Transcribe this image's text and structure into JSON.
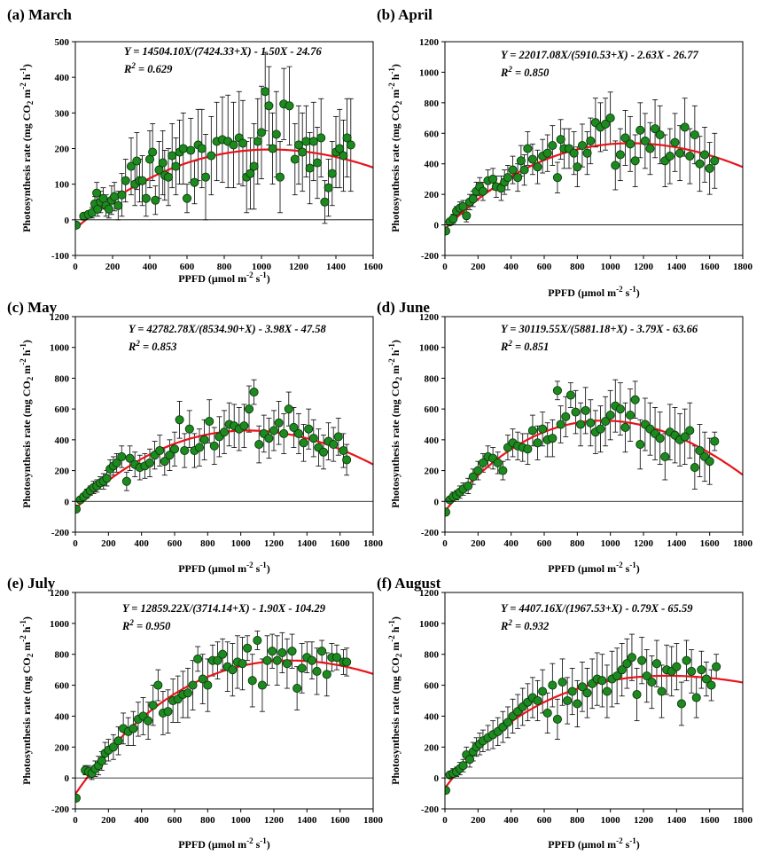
{
  "chart_data": [
    {
      "type": "scatter",
      "panel": "(a) March",
      "title": "(a) March",
      "equation": "Y = 14504.10X/(7424.33+X) - 1.50X - 24.76",
      "r2": "R² = 0.629",
      "r2_label": "R",
      "r2_sup": "2",
      "r2_value": " = 0.629",
      "xlabel": "PPFD (µmol m⁻² s⁻¹)",
      "ylabel": "Photosynthesis rate (mg CO₂ m⁻² h⁻¹)",
      "xlim": [
        0,
        1600
      ],
      "ylim": [
        -100,
        500
      ],
      "xticks": [
        0,
        200,
        400,
        600,
        800,
        1000,
        1200,
        1400,
        1600
      ],
      "yticks": [
        -100,
        0,
        100,
        200,
        300,
        400,
        500
      ],
      "fit": {
        "a": 14504.1,
        "b": 7424.33,
        "c": 1.5,
        "d": 24.76
      },
      "x": [
        5,
        45,
        70,
        90,
        105,
        115,
        120,
        135,
        150,
        165,
        180,
        195,
        210,
        230,
        250,
        270,
        300,
        320,
        330,
        345,
        360,
        380,
        400,
        415,
        430,
        450,
        470,
        480,
        500,
        520,
        540,
        560,
        580,
        600,
        620,
        640,
        660,
        680,
        700,
        730,
        760,
        790,
        820,
        850,
        880,
        900,
        920,
        940,
        960,
        980,
        1000,
        1020,
        1040,
        1060,
        1080,
        1100,
        1120,
        1150,
        1180,
        1200,
        1220,
        1240,
        1260,
        1280,
        1300,
        1320,
        1340,
        1360,
        1380,
        1400,
        1420,
        1440,
        1460,
        1480
      ],
      "y": [
        -15,
        10,
        15,
        20,
        45,
        75,
        30,
        50,
        60,
        40,
        30,
        55,
        65,
        40,
        70,
        110,
        150,
        100,
        165,
        110,
        110,
        60,
        170,
        190,
        55,
        140,
        160,
        125,
        120,
        180,
        150,
        190,
        200,
        60,
        195,
        105,
        210,
        200,
        120,
        180,
        220,
        225,
        220,
        210,
        230,
        215,
        120,
        130,
        150,
        220,
        245,
        360,
        320,
        200,
        240,
        120,
        325,
        320,
        170,
        210,
        190,
        220,
        145,
        220,
        160,
        230,
        50,
        90,
        130,
        190,
        200,
        180,
        230,
        210
      ],
      "err": [
        5,
        10,
        10,
        15,
        20,
        30,
        20,
        30,
        30,
        30,
        25,
        40,
        40,
        40,
        60,
        60,
        80,
        60,
        80,
        60,
        70,
        50,
        80,
        80,
        40,
        80,
        90,
        70,
        80,
        90,
        80,
        90,
        100,
        40,
        90,
        60,
        100,
        110,
        120,
        110,
        110,
        120,
        130,
        120,
        130,
        120,
        100,
        100,
        120,
        120,
        130,
        110,
        110,
        100,
        120,
        100,
        100,
        110,
        100,
        110,
        110,
        100,
        100,
        110,
        100,
        110,
        60,
        80,
        90,
        100,
        110,
        100,
        110,
        130
      ]
    },
    {
      "type": "scatter",
      "panel": "(b) April",
      "title": "(b) April",
      "equation": "Y = 22017.08X/(5910.53+X) - 2.63X - 26.77",
      "r2": "R² = 0.850",
      "r2_label": "R",
      "r2_sup": "2",
      "r2_value": " = 0.850",
      "xlabel": "PPFD (µmol m⁻² s⁻¹)",
      "ylabel": "Photosynthesis rate (mg CO₂ m⁻² h⁻¹)",
      "xlim": [
        0,
        1800
      ],
      "ylim": [
        -200,
        1200
      ],
      "xticks": [
        0,
        200,
        400,
        600,
        800,
        1000,
        1200,
        1400,
        1600,
        1800
      ],
      "yticks": [
        -200,
        0,
        200,
        400,
        600,
        800,
        1000,
        1200
      ],
      "fit": {
        "a": 22017.08,
        "b": 5910.53,
        "c": 2.63,
        "d": 26.77
      },
      "x": [
        5,
        30,
        50,
        70,
        90,
        110,
        130,
        150,
        170,
        190,
        210,
        230,
        260,
        290,
        310,
        340,
        360,
        380,
        410,
        440,
        460,
        480,
        500,
        530,
        560,
        590,
        620,
        650,
        680,
        700,
        720,
        750,
        780,
        800,
        830,
        860,
        880,
        910,
        940,
        970,
        1000,
        1030,
        1060,
        1090,
        1120,
        1150,
        1180,
        1210,
        1240,
        1270,
        1300,
        1330,
        1360,
        1390,
        1420,
        1450,
        1480,
        1510,
        1540,
        1570,
        1600,
        1630
      ],
      "y": [
        -40,
        20,
        40,
        90,
        110,
        120,
        60,
        150,
        170,
        220,
        250,
        220,
        290,
        300,
        250,
        240,
        280,
        310,
        360,
        310,
        420,
        360,
        500,
        430,
        380,
        450,
        470,
        520,
        310,
        560,
        500,
        500,
        470,
        380,
        520,
        470,
        550,
        670,
        640,
        660,
        700,
        390,
        460,
        570,
        530,
        420,
        620,
        550,
        500,
        630,
        590,
        420,
        450,
        540,
        470,
        640,
        450,
        590,
        400,
        460,
        370,
        420
      ],
      "err": [
        10,
        20,
        30,
        30,
        40,
        40,
        40,
        50,
        50,
        60,
        60,
        60,
        70,
        70,
        70,
        80,
        80,
        80,
        90,
        90,
        100,
        100,
        110,
        100,
        110,
        110,
        120,
        130,
        100,
        130,
        130,
        130,
        140,
        130,
        140,
        140,
        150,
        160,
        160,
        170,
        170,
        160,
        170,
        180,
        180,
        170,
        180,
        180,
        170,
        190,
        190,
        170,
        180,
        190,
        180,
        190,
        180,
        190,
        180,
        180,
        170,
        180
      ]
    },
    {
      "type": "scatter",
      "panel": "(c) May",
      "title": "(c) May",
      "equation": "Y = 42782.78X/(8534.90+X) - 3.98X - 47.58",
      "r2": "R² = 0.853",
      "r2_label": "R",
      "r2_sup": "2",
      "r2_value": " = 0.853",
      "xlabel": "PPFD (µmol m⁻² s⁻¹)",
      "ylabel": "Photosynthesis rate (mg CO₂ m⁻² h⁻¹)",
      "xlim": [
        0,
        1800
      ],
      "ylim": [
        -200,
        1200
      ],
      "xticks": [
        0,
        200,
        400,
        600,
        800,
        1000,
        1200,
        1400,
        1600,
        1800
      ],
      "yticks": [
        -200,
        0,
        200,
        400,
        600,
        800,
        1000,
        1200
      ],
      "fit": {
        "a": 42782.78,
        "b": 8534.9,
        "c": 3.98,
        "d": 47.58
      },
      "x": [
        5,
        30,
        50,
        70,
        90,
        110,
        130,
        150,
        170,
        190,
        210,
        230,
        250,
        280,
        310,
        330,
        360,
        390,
        420,
        450,
        480,
        510,
        540,
        570,
        600,
        630,
        660,
        690,
        720,
        750,
        780,
        810,
        840,
        870,
        900,
        930,
        960,
        990,
        1020,
        1050,
        1080,
        1110,
        1140,
        1170,
        1200,
        1230,
        1260,
        1290,
        1320,
        1350,
        1380,
        1410,
        1440,
        1470,
        1500,
        1530,
        1560,
        1590,
        1620,
        1640
      ],
      "y": [
        -50,
        10,
        30,
        50,
        70,
        90,
        100,
        120,
        130,
        150,
        210,
        230,
        250,
        290,
        130,
        280,
        240,
        220,
        230,
        250,
        300,
        330,
        260,
        300,
        340,
        530,
        330,
        470,
        330,
        350,
        400,
        520,
        360,
        420,
        450,
        500,
        490,
        470,
        490,
        600,
        710,
        370,
        440,
        410,
        460,
        510,
        440,
        600,
        480,
        440,
        380,
        470,
        410,
        350,
        320,
        390,
        370,
        420,
        330,
        270
      ],
      "err": [
        10,
        20,
        20,
        30,
        30,
        40,
        40,
        40,
        50,
        50,
        60,
        60,
        60,
        70,
        60,
        80,
        80,
        80,
        80,
        90,
        90,
        100,
        90,
        100,
        110,
        120,
        110,
        120,
        110,
        120,
        130,
        140,
        120,
        130,
        140,
        140,
        140,
        140,
        140,
        150,
        80,
        120,
        120,
        130,
        130,
        140,
        130,
        110,
        130,
        130,
        120,
        130,
        120,
        120,
        110,
        120,
        110,
        120,
        110,
        100
      ]
    },
    {
      "type": "scatter",
      "panel": "(d) June",
      "title": "(d) June",
      "equation": "Y = 30119.55X/(5881.18+X) - 3.79X - 63.66",
      "r2": "R² = 0.851",
      "r2_label": "R",
      "r2_sup": "2",
      "r2_value": " = 0.851",
      "xlabel": "PPFD (µmol m⁻² s⁻¹)",
      "ylabel": "Photosynthesis rate (mg CO₂ m⁻² h⁻¹)",
      "xlim": [
        0,
        1800
      ],
      "ylim": [
        -200,
        1200
      ],
      "xticks": [
        0,
        200,
        400,
        600,
        800,
        1000,
        1200,
        1400,
        1600,
        1800
      ],
      "yticks": [
        -200,
        0,
        200,
        400,
        600,
        800,
        1000,
        1200
      ],
      "fit": {
        "a": 30119.55,
        "b": 5881.18,
        "c": 3.79,
        "d": 63.66
      },
      "x": [
        5,
        30,
        50,
        70,
        90,
        110,
        140,
        170,
        200,
        230,
        260,
        290,
        320,
        350,
        380,
        410,
        440,
        470,
        500,
        530,
        560,
        590,
        620,
        650,
        680,
        700,
        730,
        760,
        790,
        820,
        850,
        880,
        910,
        940,
        970,
        1000,
        1030,
        1060,
        1090,
        1120,
        1150,
        1180,
        1210,
        1240,
        1270,
        1300,
        1330,
        1360,
        1390,
        1420,
        1450,
        1480,
        1510,
        1540,
        1570,
        1600,
        1630
      ],
      "y": [
        -70,
        10,
        30,
        40,
        60,
        80,
        100,
        160,
        200,
        250,
        290,
        280,
        250,
        200,
        350,
        380,
        360,
        350,
        340,
        460,
        380,
        470,
        400,
        410,
        720,
        500,
        550,
        690,
        580,
        500,
        590,
        510,
        450,
        470,
        520,
        560,
        620,
        600,
        480,
        560,
        660,
        370,
        500,
        470,
        440,
        410,
        290,
        450,
        430,
        400,
        420,
        460,
        220,
        330,
        290,
        260,
        390
      ],
      "err": [
        10,
        20,
        30,
        30,
        40,
        40,
        50,
        50,
        60,
        60,
        70,
        70,
        70,
        60,
        80,
        90,
        90,
        90,
        100,
        100,
        110,
        110,
        110,
        120,
        60,
        120,
        130,
        80,
        140,
        140,
        150,
        150,
        140,
        150,
        160,
        160,
        170,
        170,
        160,
        170,
        120,
        160,
        170,
        170,
        170,
        170,
        150,
        180,
        180,
        170,
        180,
        180,
        140,
        170,
        160,
        150,
        60
      ]
    },
    {
      "type": "scatter",
      "panel": "(e) July",
      "title": "(e) July",
      "equation": "Y = 12859.22X/(3714.14+X) - 1.90X - 104.29",
      "r2": "R² = 0.950",
      "r2_label": "R",
      "r2_sup": "2",
      "r2_value": " = 0.950",
      "xlabel": "PPFD (µmol m⁻² s⁻¹)",
      "ylabel": "Photosynthesis rate (mg CO₂ m⁻² h⁻¹)",
      "xlim": [
        0,
        1800
      ],
      "ylim": [
        -200,
        1200
      ],
      "xticks": [
        0,
        200,
        400,
        600,
        800,
        1000,
        1200,
        1400,
        1600,
        1800
      ],
      "yticks": [
        -200,
        0,
        200,
        400,
        600,
        800,
        1000,
        1200
      ],
      "fit": {
        "a": 12859.22,
        "b": 3714.14,
        "c": 1.9,
        "d": 104.29
      },
      "x": [
        5,
        60,
        80,
        100,
        120,
        140,
        160,
        180,
        200,
        230,
        260,
        290,
        320,
        350,
        380,
        410,
        440,
        470,
        500,
        530,
        560,
        590,
        620,
        650,
        680,
        710,
        740,
        770,
        800,
        830,
        860,
        890,
        920,
        950,
        980,
        1010,
        1040,
        1070,
        1100,
        1130,
        1160,
        1190,
        1220,
        1250,
        1280,
        1310,
        1340,
        1370,
        1400,
        1430,
        1460,
        1490,
        1520,
        1550,
        1580,
        1620,
        1640
      ],
      "y": [
        -130,
        50,
        40,
        30,
        60,
        80,
        110,
        160,
        180,
        200,
        240,
        320,
        300,
        320,
        380,
        400,
        370,
        470,
        600,
        420,
        430,
        500,
        510,
        540,
        550,
        600,
        770,
        640,
        600,
        760,
        760,
        800,
        720,
        700,
        750,
        740,
        840,
        630,
        890,
        600,
        760,
        820,
        760,
        810,
        740,
        820,
        580,
        710,
        780,
        760,
        690,
        820,
        670,
        780,
        780,
        750,
        750
      ],
      "err": [
        10,
        30,
        40,
        40,
        50,
        60,
        60,
        70,
        70,
        80,
        90,
        100,
        90,
        110,
        110,
        120,
        120,
        130,
        100,
        140,
        140,
        140,
        150,
        150,
        160,
        160,
        80,
        160,
        170,
        100,
        120,
        100,
        160,
        170,
        170,
        170,
        80,
        170,
        60,
        170,
        160,
        110,
        160,
        130,
        160,
        110,
        140,
        160,
        100,
        120,
        150,
        70,
        140,
        90,
        80,
        80,
        90
      ]
    },
    {
      "type": "scatter",
      "panel": "(f) August",
      "title": "(f) August",
      "equation": "Y = 4407.16X/(1967.53+X) - 0.79X - 65.59",
      "r2": "R² = 0.932",
      "r2_label": "R",
      "r2_sup": "2",
      "r2_value": " = 0.932",
      "xlabel": "PPFD (µmol m⁻² s⁻¹)",
      "ylabel": "Photosynthesis rate (mg CO₂ m⁻² h⁻¹)",
      "xlim": [
        0,
        1800
      ],
      "ylim": [
        -200,
        1200
      ],
      "xticks": [
        0,
        200,
        400,
        600,
        800,
        1000,
        1200,
        1400,
        1600,
        1800
      ],
      "yticks": [
        -200,
        0,
        200,
        400,
        600,
        800,
        1000,
        1200
      ],
      "fit": {
        "a": 4407.16,
        "b": 1967.53,
        "c": 0.79,
        "d": 65.59
      },
      "x": [
        5,
        30,
        50,
        70,
        90,
        110,
        130,
        150,
        170,
        190,
        210,
        230,
        260,
        290,
        320,
        350,
        380,
        410,
        440,
        470,
        500,
        530,
        560,
        590,
        620,
        650,
        680,
        710,
        740,
        770,
        800,
        830,
        860,
        890,
        920,
        950,
        980,
        1010,
        1040,
        1070,
        1100,
        1130,
        1160,
        1190,
        1220,
        1250,
        1280,
        1310,
        1340,
        1370,
        1400,
        1430,
        1460,
        1490,
        1520,
        1550,
        1580,
        1610,
        1640
      ],
      "y": [
        -80,
        20,
        30,
        40,
        60,
        80,
        150,
        120,
        170,
        200,
        220,
        240,
        260,
        280,
        300,
        330,
        360,
        400,
        430,
        460,
        490,
        520,
        500,
        560,
        420,
        600,
        380,
        620,
        500,
        560,
        480,
        590,
        550,
        610,
        640,
        630,
        560,
        640,
        660,
        700,
        740,
        780,
        540,
        760,
        660,
        620,
        740,
        560,
        700,
        690,
        720,
        480,
        760,
        690,
        520,
        700,
        640,
        600,
        720
      ],
      "err": [
        10,
        20,
        30,
        30,
        40,
        40,
        50,
        50,
        60,
        60,
        70,
        70,
        80,
        90,
        90,
        100,
        100,
        110,
        110,
        120,
        120,
        130,
        130,
        140,
        130,
        140,
        130,
        150,
        150,
        150,
        150,
        160,
        160,
        160,
        170,
        170,
        170,
        180,
        180,
        170,
        160,
        150,
        170,
        150,
        170,
        170,
        150,
        170,
        160,
        160,
        150,
        140,
        130,
        140,
        130,
        120,
        110,
        100,
        80
      ]
    }
  ]
}
